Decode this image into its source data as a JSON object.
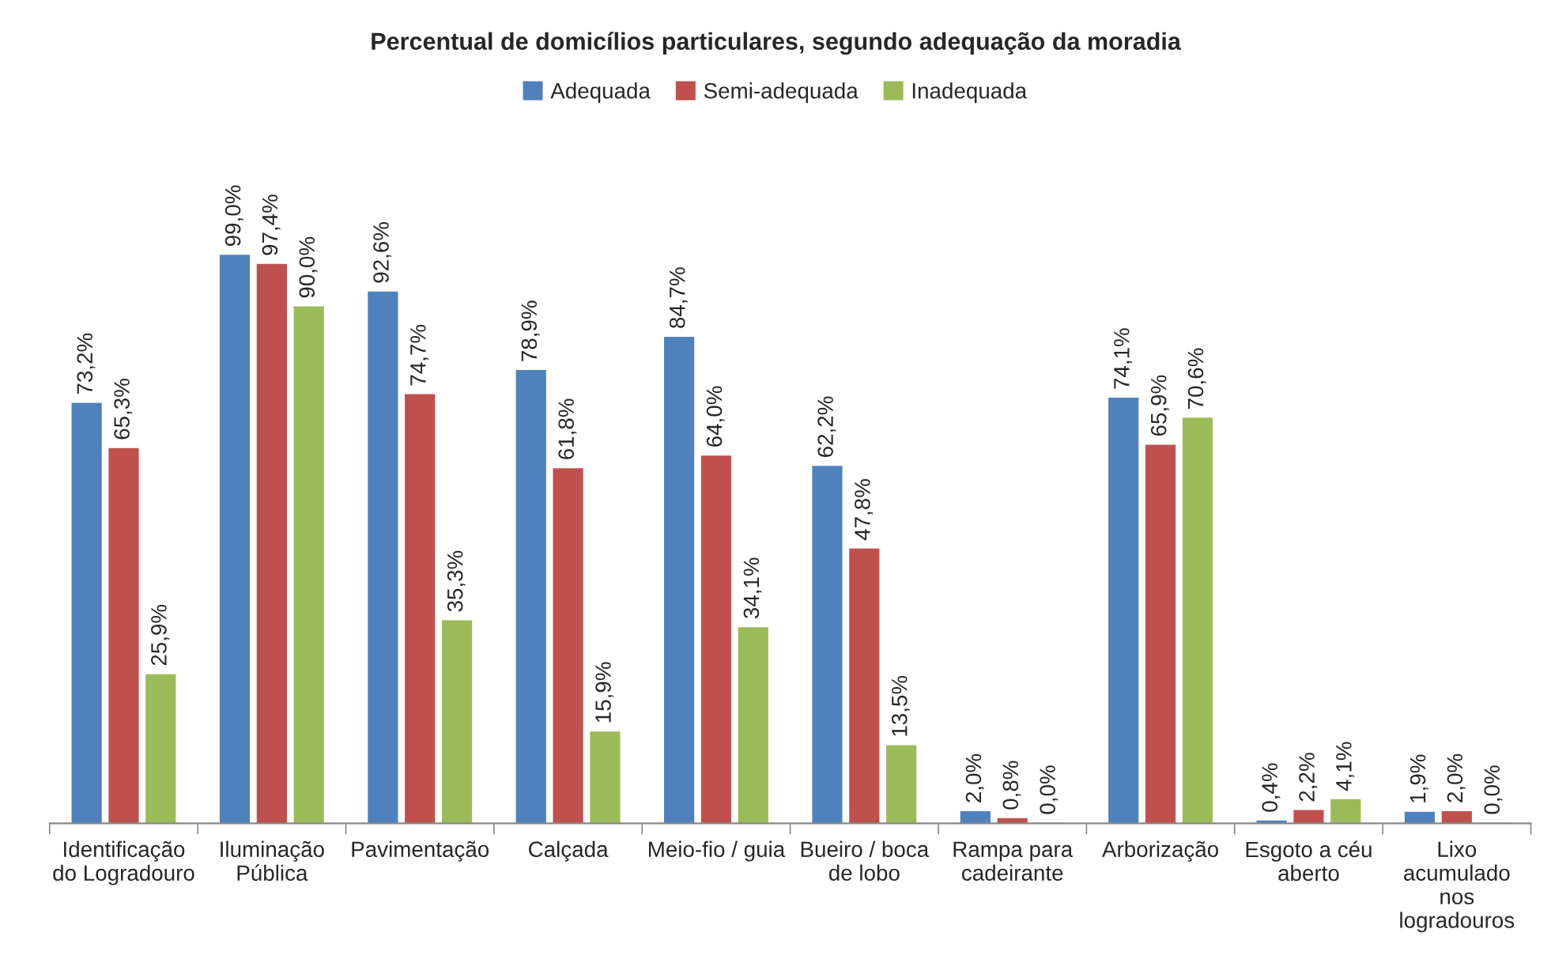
{
  "chart_data": {
    "type": "bar",
    "title": "Percentual de domicílios particulares, segundo adequação da moradia",
    "categories": [
      "Identificação\ndo Logradouro",
      "Iluminação\nPública",
      "Pavimentação",
      "Calçada",
      "Meio-fio / guia",
      "Bueiro / boca\nde lobo",
      "Rampa para\ncadeirante",
      "Arborização",
      "Esgoto a céu\naberto",
      "Lixo\nacumulado\nnos\nlogradouros"
    ],
    "series": [
      {
        "name": "Adequada",
        "color": "#4f81bd",
        "values": [
          73.2,
          99.0,
          92.6,
          78.9,
          84.7,
          62.2,
          2.0,
          74.1,
          0.4,
          1.9
        ],
        "value_labels": [
          "73,2%",
          "99,0%",
          "92,6%",
          "78,9%",
          "84,7%",
          "62,2%",
          "2,0%",
          "74,1%",
          "0,4%",
          "1,9%"
        ]
      },
      {
        "name": "Semi-adequada",
        "color": "#c0504d",
        "values": [
          65.3,
          97.4,
          74.7,
          61.8,
          64.0,
          47.8,
          0.8,
          65.9,
          2.2,
          2.0
        ],
        "value_labels": [
          "65,3%",
          "97,4%",
          "74,7%",
          "61,8%",
          "64,0%",
          "47,8%",
          "0,8%",
          "65,9%",
          "2,2%",
          "2,0%"
        ]
      },
      {
        "name": "Inadequada",
        "color": "#9bbb59",
        "values": [
          25.9,
          90.0,
          35.3,
          15.9,
          34.1,
          13.5,
          0.0,
          70.6,
          4.1,
          0.0
        ],
        "value_labels": [
          "25,9%",
          "90,0%",
          "35,3%",
          "15,9%",
          "34,1%",
          "13,5%",
          "0,0%",
          "70,6%",
          "4,1%",
          "0,0%"
        ]
      }
    ],
    "legend": "top",
    "grid": false
  }
}
